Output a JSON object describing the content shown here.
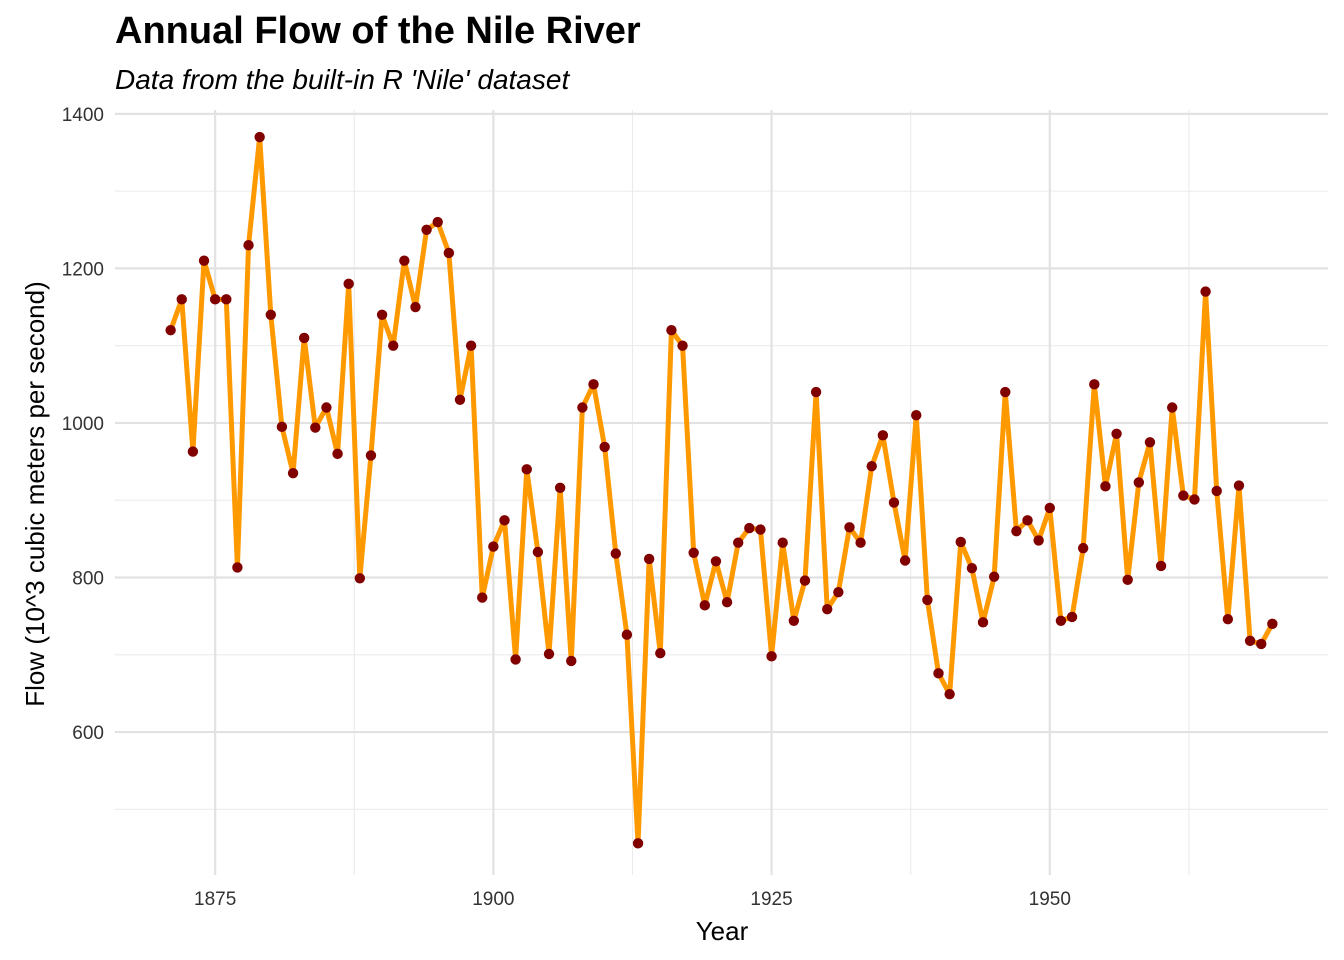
{
  "chart_data": {
    "type": "line",
    "title": "Annual Flow of the Nile River",
    "subtitle": "Data from the built-in R 'Nile' dataset",
    "xlabel": "Year",
    "ylabel": "Flow (10^3 cubic meters per second)",
    "xlim": [
      1866,
      1975
    ],
    "ylim": [
      415,
      1405
    ],
    "x_ticks": [
      1875,
      1900,
      1925,
      1950
    ],
    "y_ticks": [
      600,
      800,
      1000,
      1200,
      1400
    ],
    "grid": true,
    "legend": "none",
    "line_color": "#FF9900",
    "point_color": "#800000",
    "series": [
      {
        "x": [
          1871,
          1872,
          1873,
          1874,
          1875,
          1876,
          1877,
          1878,
          1879,
          1880,
          1881,
          1882,
          1883,
          1884,
          1885,
          1886,
          1887,
          1888,
          1889,
          1890,
          1891,
          1892,
          1893,
          1894,
          1895,
          1896,
          1897,
          1898,
          1899,
          1900,
          1901,
          1902,
          1903,
          1904,
          1905,
          1906,
          1907,
          1908,
          1909,
          1910,
          1911,
          1912,
          1913,
          1914,
          1915,
          1916,
          1917,
          1918,
          1919,
          1920,
          1921,
          1922,
          1923,
          1924,
          1925,
          1926,
          1927,
          1928,
          1929,
          1930,
          1931,
          1932,
          1933,
          1934,
          1935,
          1936,
          1937,
          1938,
          1939,
          1940,
          1941,
          1942,
          1943,
          1944,
          1945,
          1946,
          1947,
          1948,
          1949,
          1950,
          1951,
          1952,
          1953,
          1954,
          1955,
          1956,
          1957,
          1958,
          1959,
          1960,
          1961,
          1962,
          1963,
          1964,
          1965,
          1966,
          1967,
          1968,
          1969,
          1970
        ],
        "values": [
          1120,
          1160,
          963,
          1210,
          1160,
          1160,
          813,
          1230,
          1370,
          1140,
          995,
          935,
          1110,
          994,
          1020,
          960,
          1180,
          799,
          958,
          1140,
          1100,
          1210,
          1150,
          1250,
          1260,
          1220,
          1030,
          1100,
          774,
          840,
          874,
          694,
          940,
          833,
          701,
          916,
          692,
          1020,
          1050,
          969,
          831,
          726,
          456,
          824,
          702,
          1120,
          1100,
          832,
          764,
          821,
          768,
          845,
          864,
          862,
          698,
          845,
          744,
          796,
          1040,
          759,
          781,
          865,
          845,
          944,
          984,
          897,
          822,
          1010,
          771,
          676,
          649,
          846,
          812,
          742,
          801,
          1040,
          860,
          874,
          848,
          890,
          744,
          749,
          838,
          1050,
          918,
          986,
          797,
          923,
          975,
          815,
          1020,
          906,
          901,
          1170,
          912,
          746,
          919,
          718,
          714,
          740
        ]
      }
    ]
  }
}
